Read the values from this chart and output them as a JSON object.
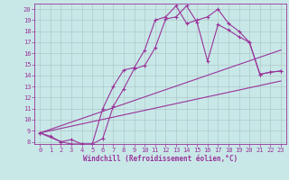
{
  "bg_color": "#c8e8e8",
  "grid_color": "#b0c8c8",
  "line_color": "#993399",
  "xlabel": "Windchill (Refroidissement éolien,°C)",
  "xlim": [
    -0.5,
    23.5
  ],
  "ylim": [
    7.8,
    20.5
  ],
  "xticks": [
    0,
    1,
    2,
    3,
    4,
    5,
    6,
    7,
    8,
    9,
    10,
    11,
    12,
    13,
    14,
    15,
    16,
    17,
    18,
    19,
    20,
    21,
    22,
    23
  ],
  "yticks": [
    8,
    9,
    10,
    11,
    12,
    13,
    14,
    15,
    16,
    17,
    18,
    19,
    20
  ],
  "curve1_x": [
    0,
    1,
    2,
    3,
    4,
    5,
    6,
    7,
    8,
    9,
    10,
    11,
    12,
    13,
    14,
    15,
    16,
    17,
    18,
    19,
    20,
    21,
    22,
    23
  ],
  "curve1_y": [
    8.8,
    8.5,
    8.0,
    7.8,
    7.8,
    7.8,
    11.0,
    13.0,
    14.5,
    14.7,
    16.3,
    19.0,
    19.3,
    20.3,
    18.7,
    19.0,
    19.3,
    20.0,
    18.7,
    18.0,
    17.0,
    14.1,
    14.3,
    14.4
  ],
  "curve2_x": [
    0,
    2,
    3,
    4,
    5,
    6,
    7,
    8,
    9,
    10,
    11,
    12,
    13,
    14,
    15,
    16,
    17,
    18,
    19,
    20,
    21,
    22,
    23
  ],
  "curve2_y": [
    8.8,
    8.0,
    8.2,
    7.8,
    7.8,
    8.3,
    11.2,
    12.8,
    14.6,
    14.9,
    16.5,
    19.1,
    19.3,
    20.3,
    18.8,
    15.3,
    18.6,
    18.1,
    17.5,
    17.0,
    14.1,
    14.3,
    14.4
  ],
  "curve3_x": [
    0,
    23
  ],
  "curve3_y": [
    8.8,
    16.3
  ],
  "curve4_x": [
    0,
    23
  ],
  "curve4_y": [
    8.8,
    13.5
  ]
}
